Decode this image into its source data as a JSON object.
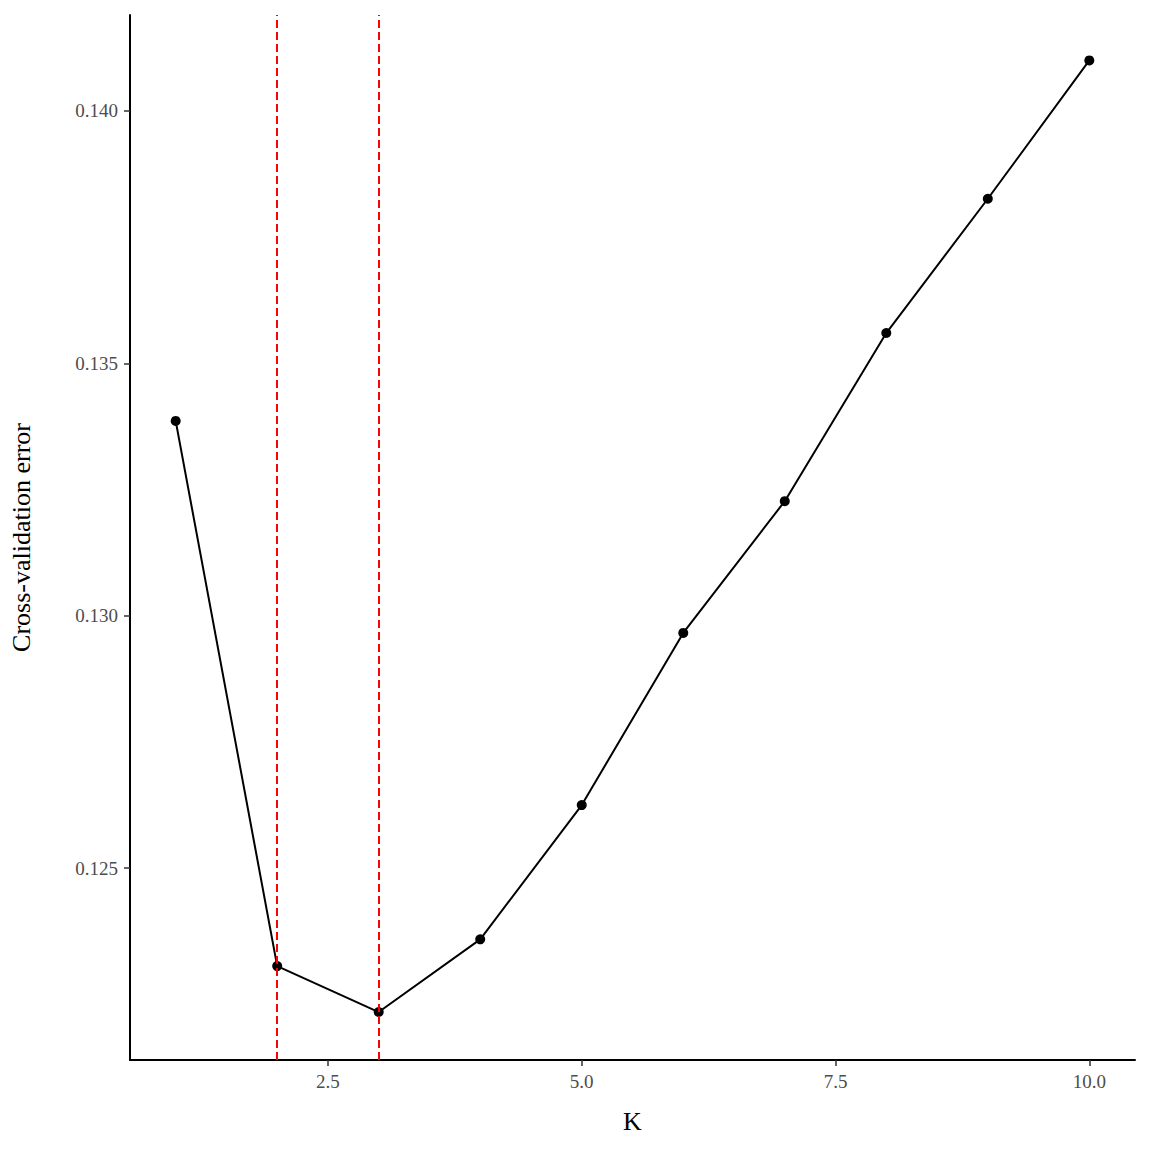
{
  "chart_data": {
    "type": "line",
    "x_label": "K",
    "y_label": "Cross-validation error",
    "x": [
      1,
      2,
      3,
      4,
      5,
      6,
      7,
      8,
      9,
      10
    ],
    "values": [
      0.13386,
      0.12306,
      0.12215,
      0.12359,
      0.12625,
      0.12966,
      0.13227,
      0.1356,
      0.13826,
      0.141
    ],
    "color": "#000000",
    "marker": "circle",
    "xlim": [
      0.55,
      10.45
    ],
    "xticks": [
      {
        "value": 2.5,
        "label": "2.5"
      },
      {
        "value": 5,
        "label": "5.0"
      },
      {
        "value": 7.5,
        "label": "7.5"
      },
      {
        "value": 10,
        "label": "10.0"
      }
    ],
    "ylim": [
      0.1212,
      0.1419
    ],
    "yticks": [
      0.125,
      {
        "value": 0.13,
        "label": "0.130"
      },
      0.135,
      {
        "value": 0.14,
        "label": "0.140"
      }
    ],
    "grid": false,
    "reference_lines": {
      "x": [
        2,
        3
      ],
      "color": "#ff0000",
      "line_style": "dashed"
    }
  }
}
